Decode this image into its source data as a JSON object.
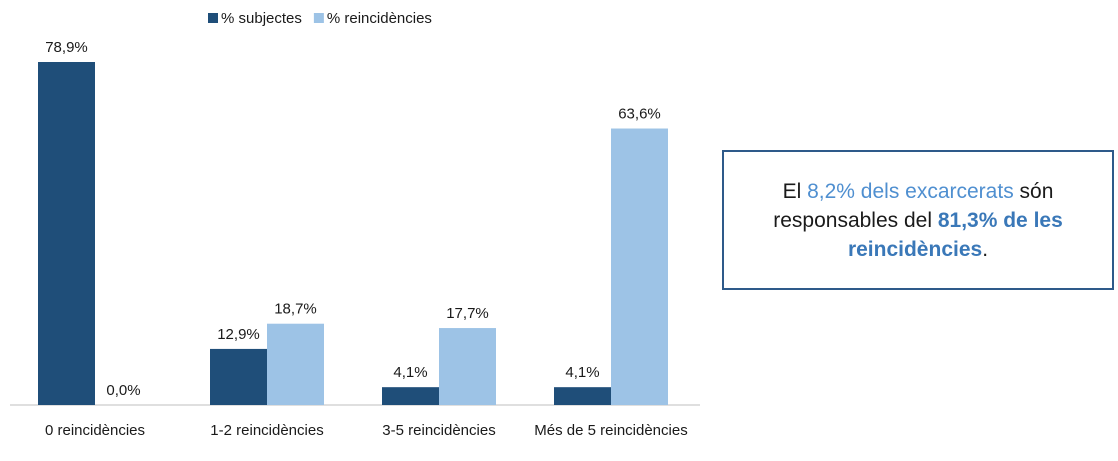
{
  "chart_data": {
    "type": "bar",
    "categories": [
      "0 reincidències",
      "1-2 reincidències",
      "3-5 reincidències",
      "Més de 5 reincidències"
    ],
    "series": [
      {
        "name": "% subjectes",
        "color": "#1f4e79",
        "values": [
          78.9,
          12.9,
          4.1,
          4.1
        ],
        "value_labels": [
          "78,9%",
          "12,9%",
          "4,1%",
          "4,1%"
        ]
      },
      {
        "name": "% reincidències",
        "color": "#9dc3e6",
        "values": [
          0,
          18.7,
          17.7,
          63.6
        ],
        "value_labels": [
          "0,0%",
          "18,7%",
          "17,7%",
          "63,6%"
        ]
      }
    ],
    "legend": "top",
    "annotation": {
      "segments": [
        {
          "text": "El ",
          "color": "#1a1a1a",
          "bold": false
        },
        {
          "text": "8,2% dels excarcerats",
          "color": "#4f8fd0",
          "bold": false
        },
        {
          "text": " són responsables del ",
          "color": "#1a1a1a",
          "bold": false
        },
        {
          "text": "81,3% de les reincidències",
          "color": "#3a78b8",
          "bold": true
        },
        {
          "text": ".",
          "color": "#1a1a1a",
          "bold": false
        }
      ]
    }
  }
}
